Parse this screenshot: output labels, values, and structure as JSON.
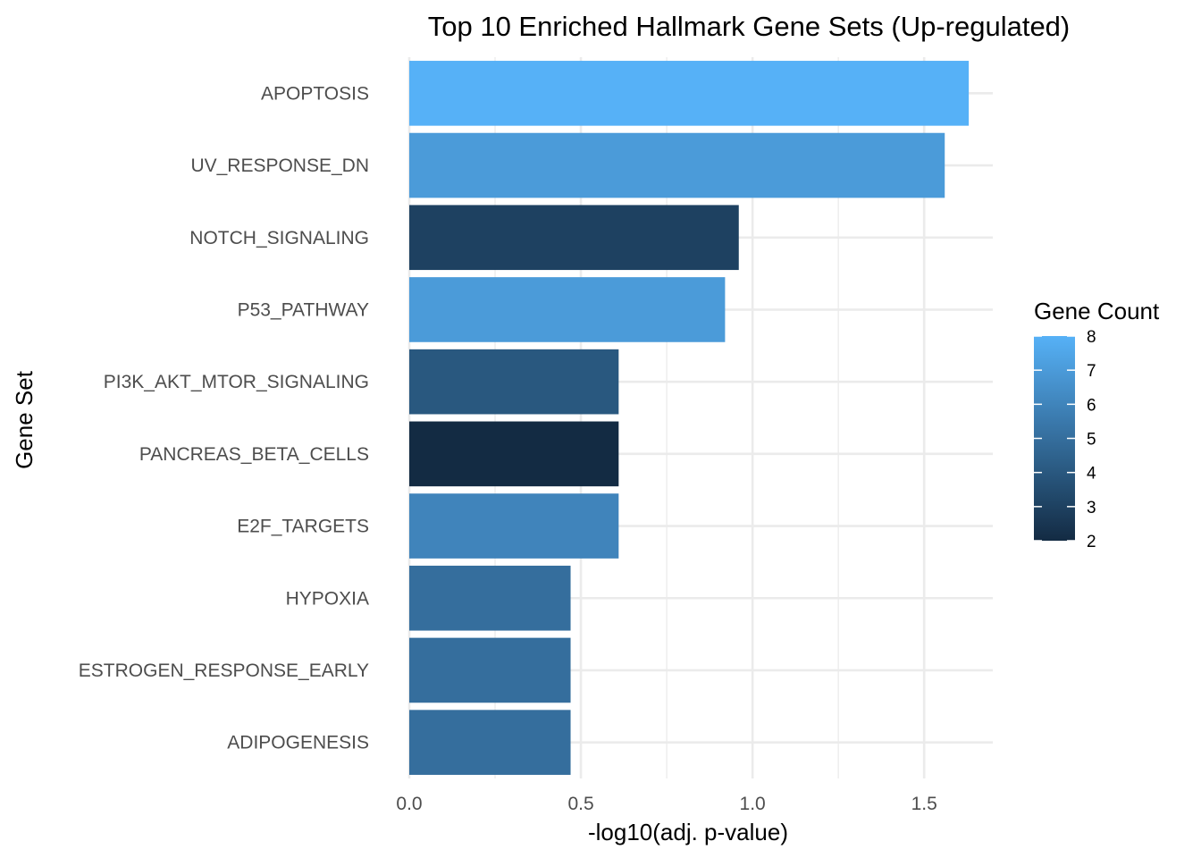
{
  "chart_data": {
    "type": "bar",
    "orientation": "horizontal",
    "title": "Top 10 Enriched Hallmark Gene Sets (Up-regulated)",
    "xlabel": "-log10(adj. p-value)",
    "ylabel": "Gene Set",
    "xlim": [
      0,
      1.7
    ],
    "x_ticks": [
      0.0,
      0.5,
      1.0,
      1.5
    ],
    "x_tick_labels": [
      "0.0",
      "0.5",
      "1.0",
      "1.5"
    ],
    "grid": true,
    "categories": [
      "APOPTOSIS",
      "UV_RESPONSE_DN",
      "NOTCH_SIGNALING",
      "P53_PATHWAY",
      "PI3K_AKT_MTOR_SIGNALING",
      "PANCREAS_BETA_CELLS",
      "E2F_TARGETS",
      "HYPOXIA",
      "ESTROGEN_RESPONSE_EARLY",
      "ADIPOGENESIS"
    ],
    "values": [
      1.63,
      1.56,
      0.96,
      0.92,
      0.61,
      0.61,
      0.61,
      0.47,
      0.47,
      0.47
    ],
    "gene_counts": [
      8,
      7,
      3,
      7,
      4,
      2,
      6,
      5,
      5,
      5
    ],
    "legend": {
      "title": "Gene Count",
      "placement": "right",
      "range": [
        2,
        8
      ],
      "ticks": [
        2,
        3,
        4,
        5,
        6,
        7,
        8
      ],
      "tick_labels": [
        "2",
        "3",
        "4",
        "5",
        "6",
        "7",
        "8"
      ],
      "color_low": "#132B43",
      "color_high": "#56B1F7"
    }
  }
}
